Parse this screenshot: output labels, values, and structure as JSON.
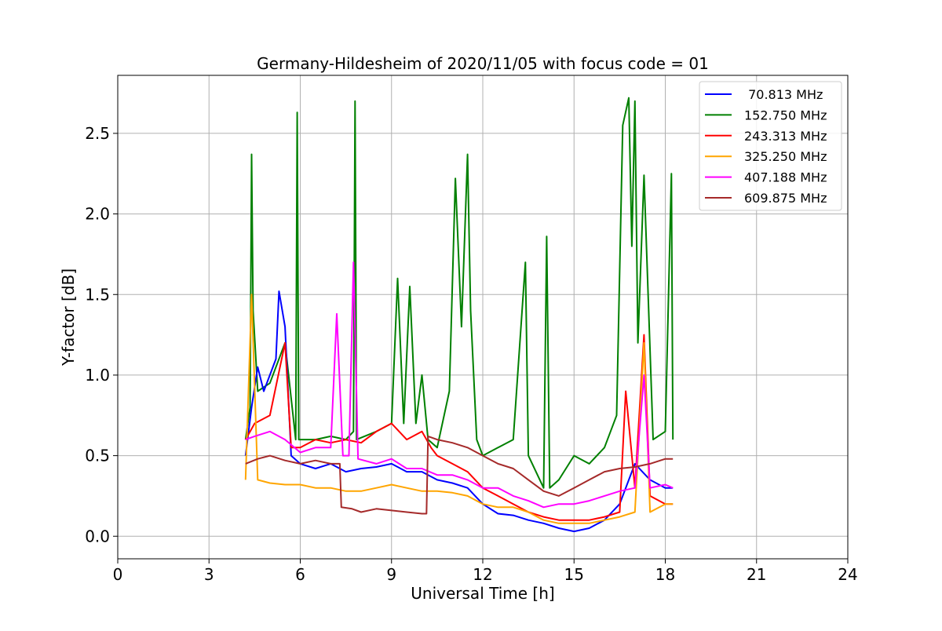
{
  "chart_data": {
    "type": "line",
    "title": "Germany-Hildesheim of 2020/11/05 with focus code = 01",
    "xlabel": "Universal Time [h]",
    "ylabel": "Y-factor [dB]",
    "xlim": [
      0,
      24
    ],
    "ylim": [
      -0.14,
      2.86
    ],
    "x_ticks": [
      0,
      3,
      6,
      9,
      12,
      15,
      18,
      21,
      24
    ],
    "x_tick_labels": [
      "0",
      "3",
      "6",
      "9",
      "12",
      "15",
      "18",
      "21",
      "24"
    ],
    "y_ticks": [
      0.0,
      0.5,
      1.0,
      1.5,
      2.0,
      2.5
    ],
    "y_tick_labels": [
      "0.0",
      "0.5",
      "1.0",
      "1.5",
      "2.0",
      "2.5"
    ],
    "grid": true,
    "legend_position": "top-right",
    "series": [
      {
        "name": " 70.813 MHz",
        "color": "#0000ff",
        "x": [
          4.2,
          4.4,
          4.6,
          4.8,
          5.0,
          5.2,
          5.3,
          5.5,
          5.7,
          6.0,
          6.5,
          7.0,
          7.5,
          8.0,
          8.5,
          9.0,
          9.5,
          10.0,
          10.5,
          11.0,
          11.5,
          12.0,
          12.5,
          13.0,
          13.5,
          14.0,
          14.5,
          15.0,
          15.5,
          16.0,
          16.5,
          17.0,
          17.5,
          18.0,
          18.25
        ],
        "y": [
          0.5,
          0.8,
          1.05,
          0.9,
          1.0,
          1.1,
          1.52,
          1.3,
          0.5,
          0.45,
          0.42,
          0.45,
          0.4,
          0.42,
          0.43,
          0.45,
          0.4,
          0.4,
          0.35,
          0.33,
          0.3,
          0.2,
          0.14,
          0.13,
          0.1,
          0.08,
          0.05,
          0.03,
          0.05,
          0.1,
          0.2,
          0.45,
          0.35,
          0.3,
          0.3
        ]
      },
      {
        "name": "152.750 MHz",
        "color": "#008000",
        "x": [
          4.2,
          4.35,
          4.4,
          4.45,
          4.6,
          5.0,
          5.5,
          5.85,
          5.9,
          5.95,
          6.5,
          7.0,
          7.5,
          7.75,
          7.8,
          7.85,
          8.5,
          9.0,
          9.2,
          9.4,
          9.6,
          9.8,
          10.0,
          10.2,
          10.5,
          10.9,
          11.1,
          11.3,
          11.5,
          11.6,
          11.8,
          12.0,
          12.5,
          13.0,
          13.4,
          13.5,
          14.0,
          14.1,
          14.2,
          14.5,
          15.0,
          15.5,
          16.0,
          16.4,
          16.6,
          16.8,
          16.9,
          17.0,
          17.1,
          17.3,
          17.6,
          18.0,
          18.2,
          18.25
        ],
        "y": [
          0.6,
          0.8,
          2.37,
          1.4,
          0.9,
          0.95,
          1.2,
          0.6,
          2.63,
          0.6,
          0.6,
          0.62,
          0.6,
          0.65,
          2.7,
          0.6,
          0.65,
          0.7,
          1.6,
          0.7,
          1.55,
          0.7,
          1.0,
          0.6,
          0.55,
          0.9,
          2.22,
          1.3,
          2.37,
          1.4,
          0.6,
          0.5,
          0.55,
          0.6,
          1.7,
          0.5,
          0.3,
          1.86,
          0.3,
          0.35,
          0.5,
          0.45,
          0.55,
          0.75,
          2.55,
          2.72,
          1.8,
          2.7,
          1.2,
          2.24,
          0.6,
          0.65,
          2.25,
          0.6
        ]
      },
      {
        "name": "243.313 MHz",
        "color": "#ff0000",
        "x": [
          4.2,
          4.5,
          5.0,
          5.5,
          5.7,
          6.0,
          6.5,
          7.0,
          7.5,
          8.0,
          8.5,
          9.0,
          9.5,
          10.0,
          10.3,
          10.5,
          11.0,
          11.5,
          12.0,
          12.5,
          13.0,
          13.5,
          14.0,
          14.5,
          15.0,
          15.5,
          16.0,
          16.5,
          16.7,
          17.0,
          17.3,
          17.5,
          18.0,
          18.25
        ],
        "y": [
          0.6,
          0.7,
          0.75,
          1.2,
          0.55,
          0.55,
          0.6,
          0.58,
          0.6,
          0.58,
          0.65,
          0.7,
          0.6,
          0.65,
          0.55,
          0.5,
          0.45,
          0.4,
          0.3,
          0.25,
          0.2,
          0.15,
          0.12,
          0.1,
          0.1,
          0.1,
          0.12,
          0.15,
          0.9,
          0.3,
          1.25,
          0.25,
          0.2,
          0.2
        ]
      },
      {
        "name": "325.250 MHz",
        "color": "#ffa500",
        "x": [
          4.2,
          4.4,
          4.6,
          5.0,
          5.5,
          6.0,
          6.5,
          7.0,
          7.5,
          8.0,
          8.5,
          9.0,
          9.5,
          10.0,
          10.5,
          11.0,
          11.5,
          12.0,
          12.5,
          13.0,
          13.5,
          14.0,
          14.5,
          15.0,
          15.5,
          16.0,
          16.5,
          17.0,
          17.3,
          17.5,
          18.0,
          18.25
        ],
        "y": [
          0.35,
          1.5,
          0.35,
          0.33,
          0.32,
          0.32,
          0.3,
          0.3,
          0.28,
          0.28,
          0.3,
          0.32,
          0.3,
          0.28,
          0.28,
          0.27,
          0.25,
          0.2,
          0.18,
          0.18,
          0.15,
          0.1,
          0.08,
          0.08,
          0.08,
          0.1,
          0.12,
          0.15,
          1.2,
          0.15,
          0.2,
          0.2
        ]
      },
      {
        "name": "407.188 MHz",
        "color": "#ff00ff",
        "x": [
          4.2,
          4.5,
          5.0,
          5.5,
          6.0,
          6.5,
          7.0,
          7.2,
          7.4,
          7.6,
          7.75,
          7.9,
          8.5,
          9.0,
          9.5,
          10.0,
          10.5,
          11.0,
          11.5,
          12.0,
          12.5,
          13.0,
          13.5,
          14.0,
          14.5,
          15.0,
          15.5,
          16.0,
          16.5,
          17.0,
          17.3,
          17.5,
          18.0,
          18.25
        ],
        "y": [
          0.6,
          0.62,
          0.65,
          0.6,
          0.52,
          0.55,
          0.55,
          1.38,
          0.5,
          0.5,
          1.7,
          0.48,
          0.45,
          0.48,
          0.42,
          0.42,
          0.38,
          0.38,
          0.35,
          0.3,
          0.3,
          0.25,
          0.22,
          0.18,
          0.2,
          0.2,
          0.22,
          0.25,
          0.28,
          0.3,
          1.0,
          0.3,
          0.32,
          0.3
        ]
      },
      {
        "name": "609.875 MHz",
        "color": "#a52a2a",
        "x": [
          4.2,
          4.6,
          5.0,
          5.5,
          6.0,
          6.5,
          7.0,
          7.3,
          7.35,
          7.7,
          8.0,
          8.5,
          9.0,
          9.5,
          10.0,
          10.15,
          10.2,
          10.5,
          11.0,
          11.5,
          12.0,
          12.5,
          13.0,
          13.5,
          14.0,
          14.5,
          15.0,
          15.5,
          16.0,
          16.5,
          17.0,
          17.5,
          18.0,
          18.25
        ],
        "y": [
          0.45,
          0.48,
          0.5,
          0.47,
          0.45,
          0.47,
          0.45,
          0.45,
          0.18,
          0.17,
          0.15,
          0.17,
          0.16,
          0.15,
          0.14,
          0.14,
          0.62,
          0.6,
          0.58,
          0.55,
          0.5,
          0.45,
          0.42,
          0.35,
          0.28,
          0.25,
          0.3,
          0.35,
          0.4,
          0.42,
          0.43,
          0.45,
          0.48,
          0.48
        ]
      }
    ]
  }
}
